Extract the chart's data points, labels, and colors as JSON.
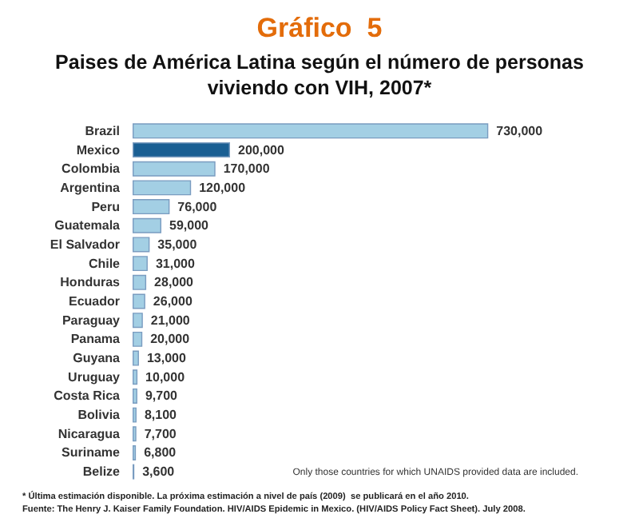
{
  "chart_data": {
    "type": "bar",
    "orientation": "horizontal",
    "title": "Gráfico  5",
    "subtitle": "Paises de América Latina según el número de personas\nviviendo con VIH, 2007*",
    "categories": [
      "Brazil",
      "Mexico",
      "Colombia",
      "Argentina",
      "Peru",
      "Guatemala",
      "El Salvador",
      "Chile",
      "Honduras",
      "Ecuador",
      "Paraguay",
      "Panama",
      "Guyana",
      "Uruguay",
      "Costa Rica",
      "Bolivia",
      "Nicaragua",
      "Suriname",
      "Belize"
    ],
    "values": [
      730000,
      200000,
      170000,
      120000,
      76000,
      59000,
      35000,
      31000,
      28000,
      26000,
      21000,
      20000,
      13000,
      10000,
      9700,
      8100,
      7700,
      6800,
      3600
    ],
    "colors": [
      "#a3cfe4",
      "#1a5f93",
      "#a3cfe4",
      "#a3cfe4",
      "#a3cfe4",
      "#a3cfe4",
      "#a3cfe4",
      "#a3cfe4",
      "#a3cfe4",
      "#a3cfe4",
      "#a3cfe4",
      "#a3cfe4",
      "#a3cfe4",
      "#a3cfe4",
      "#a3cfe4",
      "#a3cfe4",
      "#a3cfe4",
      "#a3cfe4",
      "#a3cfe4"
    ],
    "value_labels": [
      "730,000",
      "200,000",
      "170,000",
      "120,000",
      "76,000",
      "59,000",
      "35,000",
      "31,000",
      "28,000",
      "26,000",
      "21,000",
      "20,000",
      "13,000",
      "10,000",
      "9,700",
      "8,100",
      "7,700",
      "6,800",
      "3,600"
    ],
    "tick_labels": "y",
    "annotations": [
      "Only those countries for which UNAIDS provided data are included.",
      "* Última estimación disponible. La próxima estimación a nivel de país (2009)  se publicará en el año 2010.",
      "Fuente: The Henry J. Kaiser Family Foundation. HIV/AIDS Epidemic in Mexico. (HIV/AIDS Policy Fact Sheet). July 2008."
    ]
  }
}
